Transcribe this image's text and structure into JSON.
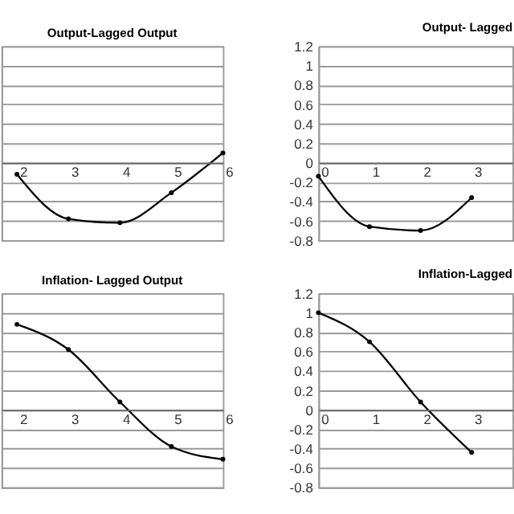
{
  "chart_data": [
    {
      "type": "line",
      "title": "Output-Lagged Output",
      "x": [
        2,
        3,
        4,
        5,
        6
      ],
      "series": [
        {
          "color": "#000000",
          "values": [
            -0.12,
            -0.58,
            -0.62,
            -0.31,
            0.1
          ]
        }
      ],
      "xlim": [
        1.7,
        6
      ],
      "xticks": [
        2,
        3,
        4,
        5,
        6
      ],
      "ylim": [
        -0.8,
        1.2
      ],
      "yticks": [
        -0.8,
        -0.6,
        -0.4,
        -0.2,
        0,
        0.2,
        0.4,
        0.6,
        0.8,
        1,
        1.2
      ],
      "grid": "y",
      "marker": "circle",
      "tick_labels": "x"
    },
    {
      "type": "line",
      "title": "Output- Lagged",
      "x": [
        0,
        1,
        2,
        3
      ],
      "series": [
        {
          "color": "#000000",
          "values": [
            -0.14,
            -0.66,
            -0.7,
            -0.36
          ]
        }
      ],
      "xlim": [
        0,
        3.8
      ],
      "xticks": [
        0,
        1,
        2,
        3
      ],
      "ylim": [
        -0.8,
        1.2
      ],
      "yticks": [
        -0.8,
        -0.6,
        -0.4,
        -0.2,
        0,
        0.2,
        0.4,
        0.6,
        0.8,
        1,
        1.2
      ],
      "grid": "y",
      "marker": "circle"
    },
    {
      "type": "line",
      "title": "Inflation- Lagged Output",
      "x": [
        2,
        3,
        4,
        5,
        6
      ],
      "series": [
        {
          "color": "#000000",
          "values": [
            0.88,
            0.62,
            0.08,
            -0.38,
            -0.51
          ]
        }
      ],
      "xlim": [
        1.7,
        6
      ],
      "xticks": [
        2,
        3,
        4,
        5,
        6
      ],
      "ylim": [
        -0.8,
        1.2
      ],
      "yticks": [
        -0.8,
        -0.6,
        -0.4,
        -0.2,
        0,
        0.2,
        0.4,
        0.6,
        0.8,
        1,
        1.2
      ],
      "grid": "y",
      "marker": "circle",
      "tick_labels": "x"
    },
    {
      "type": "line",
      "title": "Inflation-Lagged",
      "x": [
        0,
        1,
        2,
        3
      ],
      "series": [
        {
          "color": "#000000",
          "values": [
            1.0,
            0.7,
            0.08,
            -0.44
          ]
        }
      ],
      "xlim": [
        0,
        3.8
      ],
      "xticks": [
        0,
        1,
        2,
        3
      ],
      "ylim": [
        -0.8,
        1.2
      ],
      "yticks": [
        -0.8,
        -0.6,
        -0.4,
        -0.2,
        0,
        0.2,
        0.4,
        0.6,
        0.8,
        1,
        1.2
      ],
      "grid": "y",
      "marker": "circle"
    }
  ]
}
